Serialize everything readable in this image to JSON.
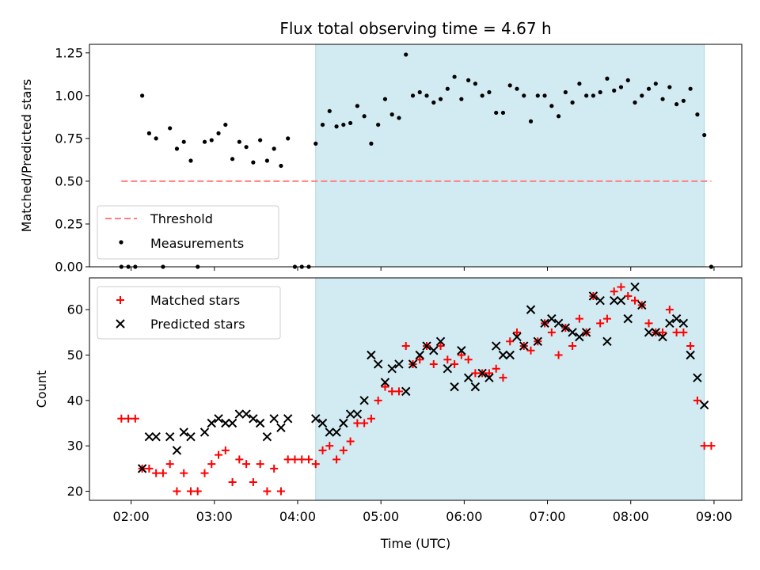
{
  "colors": {
    "span": "#add8e6",
    "threshold": "#ff7f7f",
    "measurement": "#000000",
    "matched": "#ff0000",
    "predicted": "#000000"
  },
  "chart_data": [
    {
      "type": "scatter",
      "title": "Flux total observing time = 4.67 h",
      "xlabel": "",
      "ylabel": "Matched/Predicted stars",
      "xlim": [
        "01:30",
        "09:20"
      ],
      "ylim": [
        0,
        1.3
      ],
      "yticks": [
        0.0,
        0.25,
        0.5,
        0.75,
        1.0,
        1.25
      ],
      "ytick_labels": [
        "0.00",
        "0.25",
        "0.50",
        "0.75",
        "1.00",
        "1.25"
      ],
      "highlight_span": [
        "04:13",
        "08:53"
      ],
      "legend": {
        "position": "lower-left",
        "entries": [
          "Threshold",
          "Measurements"
        ]
      },
      "threshold": {
        "name": "Threshold",
        "value": 0.5,
        "x_range": [
          "01:53",
          "08:58"
        ]
      },
      "series": [
        {
          "name": "Measurements",
          "points": [
            [
              "01:53",
              0
            ],
            [
              "01:58",
              0
            ],
            [
              "02:03",
              0
            ],
            [
              "02:08",
              1.0
            ],
            [
              "02:13",
              0.78
            ],
            [
              "02:18",
              0.75
            ],
            [
              "02:23",
              0
            ],
            [
              "02:28",
              0.81
            ],
            [
              "02:33",
              0.69
            ],
            [
              "02:38",
              0.73
            ],
            [
              "02:43",
              0.62
            ],
            [
              "02:48",
              0
            ],
            [
              "02:53",
              0.73
            ],
            [
              "02:58",
              0.74
            ],
            [
              "03:03",
              0.78
            ],
            [
              "03:08",
              0.83
            ],
            [
              "03:13",
              0.63
            ],
            [
              "03:18",
              0.73
            ],
            [
              "03:23",
              0.7
            ],
            [
              "03:28",
              0.61
            ],
            [
              "03:33",
              0.74
            ],
            [
              "03:38",
              0.62
            ],
            [
              "03:43",
              0.69
            ],
            [
              "03:48",
              0.59
            ],
            [
              "03:53",
              0.75
            ],
            [
              "03:58",
              0
            ],
            [
              "04:03",
              0
            ],
            [
              "04:08",
              0
            ],
            [
              "04:13",
              0.72
            ],
            [
              "04:18",
              0.83
            ],
            [
              "04:23",
              0.91
            ],
            [
              "04:28",
              0.82
            ],
            [
              "04:33",
              0.83
            ],
            [
              "04:38",
              0.84
            ],
            [
              "04:43",
              0.94
            ],
            [
              "04:48",
              0.88
            ],
            [
              "04:53",
              0.72
            ],
            [
              "04:58",
              0.83
            ],
            [
              "05:03",
              0.98
            ],
            [
              "05:08",
              0.89
            ],
            [
              "05:13",
              0.87
            ],
            [
              "05:18",
              1.24
            ],
            [
              "05:23",
              1.0
            ],
            [
              "05:28",
              1.02
            ],
            [
              "05:33",
              1.0
            ],
            [
              "05:38",
              0.96
            ],
            [
              "05:43",
              0.98
            ],
            [
              "05:48",
              1.04
            ],
            [
              "05:53",
              1.11
            ],
            [
              "05:58",
              0.98
            ],
            [
              "06:03",
              1.09
            ],
            [
              "06:08",
              1.07
            ],
            [
              "06:13",
              1.0
            ],
            [
              "06:18",
              1.02
            ],
            [
              "06:23",
              0.9
            ],
            [
              "06:28",
              0.9
            ],
            [
              "06:33",
              1.06
            ],
            [
              "06:38",
              1.04
            ],
            [
              "06:43",
              1.0
            ],
            [
              "06:48",
              0.85
            ],
            [
              "06:53",
              1.0
            ],
            [
              "06:58",
              1.0
            ],
            [
              "07:03",
              0.94
            ],
            [
              "07:08",
              0.88
            ],
            [
              "07:13",
              1.02
            ],
            [
              "07:18",
              0.96
            ],
            [
              "07:23",
              1.07
            ],
            [
              "07:28",
              1.0
            ],
            [
              "07:33",
              1.0
            ],
            [
              "07:38",
              1.02
            ],
            [
              "07:43",
              1.1
            ],
            [
              "07:48",
              1.03
            ],
            [
              "07:53",
              1.05
            ],
            [
              "07:58",
              1.09
            ],
            [
              "08:03",
              0.96
            ],
            [
              "08:08",
              1.0
            ],
            [
              "08:13",
              1.04
            ],
            [
              "08:18",
              1.07
            ],
            [
              "08:23",
              0.98
            ],
            [
              "08:28",
              1.05
            ],
            [
              "08:33",
              0.95
            ],
            [
              "08:38",
              0.97
            ],
            [
              "08:43",
              1.04
            ],
            [
              "08:48",
              0.89
            ],
            [
              "08:53",
              0.77
            ],
            [
              "08:58",
              0
            ]
          ]
        }
      ]
    },
    {
      "type": "scatter",
      "title": "",
      "xlabel": "Time (UTC)",
      "ylabel": "Count",
      "xlim": [
        "01:30",
        "09:20"
      ],
      "ylim": [
        18,
        67
      ],
      "yticks": [
        20,
        30,
        40,
        50,
        60
      ],
      "ytick_labels": [
        "20",
        "30",
        "40",
        "50",
        "60"
      ],
      "xticks": [
        "02:00",
        "03:00",
        "04:00",
        "05:00",
        "06:00",
        "07:00",
        "08:00",
        "09:00"
      ],
      "xtick_labels": [
        "02:00",
        "03:00",
        "04:00",
        "05:00",
        "06:00",
        "07:00",
        "08:00",
        "09:00"
      ],
      "highlight_span": [
        "04:13",
        "08:53"
      ],
      "legend": {
        "position": "upper-left",
        "entries": [
          "Matched stars",
          "Predicted stars"
        ]
      },
      "series": [
        {
          "name": "Matched stars",
          "marker": "plus",
          "points": [
            [
              "01:53",
              36
            ],
            [
              "01:58",
              36
            ],
            [
              "02:03",
              36
            ],
            [
              "02:08",
              25
            ],
            [
              "02:13",
              25
            ],
            [
              "02:18",
              24
            ],
            [
              "02:23",
              24
            ],
            [
              "02:28",
              26
            ],
            [
              "02:33",
              20
            ],
            [
              "02:38",
              24
            ],
            [
              "02:43",
              20
            ],
            [
              "02:48",
              20
            ],
            [
              "02:53",
              24
            ],
            [
              "02:58",
              26
            ],
            [
              "03:03",
              28
            ],
            [
              "03:08",
              29
            ],
            [
              "03:13",
              22
            ],
            [
              "03:18",
              27
            ],
            [
              "03:23",
              26
            ],
            [
              "03:28",
              22
            ],
            [
              "03:33",
              26
            ],
            [
              "03:38",
              20
            ],
            [
              "03:43",
              25
            ],
            [
              "03:48",
              20
            ],
            [
              "03:53",
              27
            ],
            [
              "03:58",
              27
            ],
            [
              "04:03",
              27
            ],
            [
              "04:08",
              27
            ],
            [
              "04:13",
              26
            ],
            [
              "04:18",
              29
            ],
            [
              "04:23",
              30
            ],
            [
              "04:28",
              27
            ],
            [
              "04:33",
              29
            ],
            [
              "04:38",
              31
            ],
            [
              "04:43",
              35
            ],
            [
              "04:48",
              35
            ],
            [
              "04:53",
              36
            ],
            [
              "04:58",
              40
            ],
            [
              "05:03",
              43
            ],
            [
              "05:08",
              42
            ],
            [
              "05:13",
              42
            ],
            [
              "05:18",
              52
            ],
            [
              "05:23",
              48
            ],
            [
              "05:28",
              49
            ],
            [
              "05:33",
              52
            ],
            [
              "05:38",
              48
            ],
            [
              "05:43",
              52
            ],
            [
              "05:48",
              49
            ],
            [
              "05:53",
              48
            ],
            [
              "05:58",
              50
            ],
            [
              "06:03",
              49
            ],
            [
              "06:08",
              46
            ],
            [
              "06:13",
              46
            ],
            [
              "06:18",
              46
            ],
            [
              "06:23",
              47
            ],
            [
              "06:28",
              45
            ],
            [
              "06:33",
              53
            ],
            [
              "06:38",
              55
            ],
            [
              "06:43",
              52
            ],
            [
              "06:48",
              51
            ],
            [
              "06:53",
              53
            ],
            [
              "06:58",
              57
            ],
            [
              "07:03",
              55
            ],
            [
              "07:08",
              50
            ],
            [
              "07:13",
              56
            ],
            [
              "07:18",
              52
            ],
            [
              "07:23",
              58
            ],
            [
              "07:28",
              55
            ],
            [
              "07:33",
              63
            ],
            [
              "07:38",
              57
            ],
            [
              "07:43",
              58
            ],
            [
              "07:48",
              64
            ],
            [
              "07:53",
              65
            ],
            [
              "07:58",
              63
            ],
            [
              "08:03",
              62
            ],
            [
              "08:08",
              61
            ],
            [
              "08:13",
              57
            ],
            [
              "08:18",
              55
            ],
            [
              "08:23",
              55
            ],
            [
              "08:28",
              60
            ],
            [
              "08:33",
              55
            ],
            [
              "08:38",
              55
            ],
            [
              "08:43",
              52
            ],
            [
              "08:48",
              40
            ],
            [
              "08:53",
              30
            ],
            [
              "08:58",
              30
            ]
          ]
        },
        {
          "name": "Predicted stars",
          "marker": "x",
          "points": [
            [
              "02:08",
              25
            ],
            [
              "02:13",
              32
            ],
            [
              "02:18",
              32
            ],
            [
              "02:28",
              32
            ],
            [
              "02:33",
              29
            ],
            [
              "02:38",
              33
            ],
            [
              "02:43",
              32
            ],
            [
              "02:53",
              33
            ],
            [
              "02:58",
              35
            ],
            [
              "03:03",
              36
            ],
            [
              "03:08",
              35
            ],
            [
              "03:13",
              35
            ],
            [
              "03:18",
              37
            ],
            [
              "03:23",
              37
            ],
            [
              "03:28",
              36
            ],
            [
              "03:33",
              35
            ],
            [
              "03:38",
              32
            ],
            [
              "03:43",
              36
            ],
            [
              "03:48",
              34
            ],
            [
              "03:53",
              36
            ],
            [
              "04:13",
              36
            ],
            [
              "04:18",
              35
            ],
            [
              "04:23",
              33
            ],
            [
              "04:28",
              33
            ],
            [
              "04:33",
              35
            ],
            [
              "04:38",
              37
            ],
            [
              "04:43",
              37
            ],
            [
              "04:48",
              40
            ],
            [
              "04:53",
              50
            ],
            [
              "04:58",
              48
            ],
            [
              "05:03",
              44
            ],
            [
              "05:08",
              47
            ],
            [
              "05:13",
              48
            ],
            [
              "05:18",
              42
            ],
            [
              "05:23",
              48
            ],
            [
              "05:28",
              50
            ],
            [
              "05:33",
              52
            ],
            [
              "05:38",
              51
            ],
            [
              "05:43",
              53
            ],
            [
              "05:48",
              47
            ],
            [
              "05:53",
              43
            ],
            [
              "05:58",
              51
            ],
            [
              "06:03",
              45
            ],
            [
              "06:08",
              43
            ],
            [
              "06:13",
              46
            ],
            [
              "06:18",
              45
            ],
            [
              "06:23",
              52
            ],
            [
              "06:28",
              50
            ],
            [
              "06:33",
              50
            ],
            [
              "06:38",
              54
            ],
            [
              "06:43",
              52
            ],
            [
              "06:48",
              60
            ],
            [
              "06:53",
              53
            ],
            [
              "06:58",
              57
            ],
            [
              "07:03",
              58
            ],
            [
              "07:08",
              57
            ],
            [
              "07:13",
              56
            ],
            [
              "07:18",
              55
            ],
            [
              "07:23",
              54
            ],
            [
              "07:28",
              55
            ],
            [
              "07:33",
              63
            ],
            [
              "07:38",
              62
            ],
            [
              "07:43",
              53
            ],
            [
              "07:48",
              62
            ],
            [
              "07:53",
              62
            ],
            [
              "07:58",
              58
            ],
            [
              "08:03",
              65
            ],
            [
              "08:08",
              61
            ],
            [
              "08:13",
              55
            ],
            [
              "08:18",
              55
            ],
            [
              "08:23",
              54
            ],
            [
              "08:28",
              57
            ],
            [
              "08:33",
              58
            ],
            [
              "08:38",
              57
            ],
            [
              "08:43",
              50
            ],
            [
              "08:48",
              45
            ],
            [
              "08:53",
              39
            ]
          ]
        }
      ]
    }
  ]
}
